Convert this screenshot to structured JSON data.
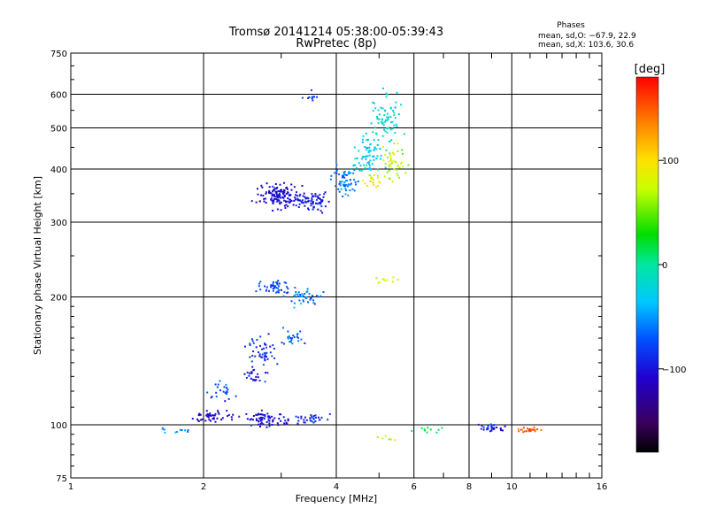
{
  "chart_data": {
    "type": "scatter",
    "title": "Tromsø 20141214 05:38:00-05:39:43",
    "subtitle": "RwPretec (8p)",
    "xlabel": "Frequency [MHz]",
    "ylabel": "Stationary phase Virtual Height [km]",
    "x_scale": "log",
    "y_scale": "log",
    "xlim": [
      1,
      16
    ],
    "ylim": [
      75,
      750
    ],
    "x_ticks": [
      "1",
      "2",
      "4",
      "6",
      "8",
      "10",
      "16"
    ],
    "x_tick_values": [
      1,
      2,
      4,
      6,
      8,
      10,
      16
    ],
    "x_minor_ticks": [
      3,
      5,
      7,
      9,
      11,
      12,
      13,
      14,
      15
    ],
    "y_ticks": [
      "75",
      "100",
      "200",
      "300",
      "400",
      "500",
      "600",
      "750"
    ],
    "y_tick_values": [
      75,
      100,
      200,
      300,
      400,
      500,
      600,
      750
    ],
    "grid": true,
    "phases_box": {
      "title": "Phases",
      "line1": "mean, sd,O: −67.9, 22.9",
      "line2": "mean, sd,X: 103.6, 30.6"
    },
    "colorbar": {
      "label": "[deg]",
      "range": [
        -180,
        180
      ],
      "ticks": [
        "100",
        "0",
        "−100"
      ],
      "tick_values": [
        100,
        0,
        -100
      ]
    },
    "clusters": [
      {
        "x": 3.5,
        "y": 590,
        "phase": -85,
        "n": 10,
        "sx": 0.03,
        "sy": 0.03
      },
      {
        "x": 3.0,
        "y": 345,
        "phase": -105,
        "n": 140,
        "sx": 0.07,
        "sy": 0.04
      },
      {
        "x": 3.6,
        "y": 335,
        "phase": -100,
        "n": 70,
        "sx": 0.06,
        "sy": 0.03
      },
      {
        "x": 4.2,
        "y": 370,
        "phase": -60,
        "n": 60,
        "sx": 0.04,
        "sy": 0.05
      },
      {
        "x": 4.7,
        "y": 430,
        "phase": -30,
        "n": 70,
        "sx": 0.05,
        "sy": 0.07
      },
      {
        "x": 5.2,
        "y": 520,
        "phase": -20,
        "n": 70,
        "sx": 0.05,
        "sy": 0.09
      },
      {
        "x": 5.4,
        "y": 420,
        "phase": 70,
        "n": 45,
        "sx": 0.04,
        "sy": 0.06
      },
      {
        "x": 4.8,
        "y": 380,
        "phase": 95,
        "n": 20,
        "sx": 0.03,
        "sy": 0.03
      },
      {
        "x": 2.9,
        "y": 210,
        "phase": -75,
        "n": 45,
        "sx": 0.05,
        "sy": 0.03
      },
      {
        "x": 3.4,
        "y": 200,
        "phase": -60,
        "n": 40,
        "sx": 0.05,
        "sy": 0.03
      },
      {
        "x": 2.7,
        "y": 150,
        "phase": -85,
        "n": 45,
        "sx": 0.05,
        "sy": 0.05
      },
      {
        "x": 3.2,
        "y": 160,
        "phase": -70,
        "n": 25,
        "sx": 0.04,
        "sy": 0.03
      },
      {
        "x": 2.2,
        "y": 120,
        "phase": -80,
        "n": 25,
        "sx": 0.05,
        "sy": 0.03
      },
      {
        "x": 2.6,
        "y": 130,
        "phase": -95,
        "n": 25,
        "sx": 0.04,
        "sy": 0.03
      },
      {
        "x": 2.1,
        "y": 105,
        "phase": -110,
        "n": 45,
        "sx": 0.06,
        "sy": 0.02
      },
      {
        "x": 2.8,
        "y": 103,
        "phase": -100,
        "n": 70,
        "sx": 0.08,
        "sy": 0.025
      },
      {
        "x": 3.5,
        "y": 103,
        "phase": -95,
        "n": 30,
        "sx": 0.06,
        "sy": 0.02
      },
      {
        "x": 1.7,
        "y": 97,
        "phase": -55,
        "n": 12,
        "sx": 0.08,
        "sy": 0.015
      },
      {
        "x": 5.2,
        "y": 218,
        "phase": 85,
        "n": 10,
        "sx": 0.04,
        "sy": 0.01
      },
      {
        "x": 9.0,
        "y": 98,
        "phase": -90,
        "n": 30,
        "sx": 0.04,
        "sy": 0.012
      },
      {
        "x": 11.0,
        "y": 97,
        "phase": 150,
        "n": 25,
        "sx": 0.05,
        "sy": 0.01
      },
      {
        "x": 6.5,
        "y": 96,
        "phase": 20,
        "n": 10,
        "sx": 0.05,
        "sy": 0.015
      },
      {
        "x": 5.2,
        "y": 93,
        "phase": 80,
        "n": 6,
        "sx": 0.04,
        "sy": 0.01
      }
    ]
  }
}
